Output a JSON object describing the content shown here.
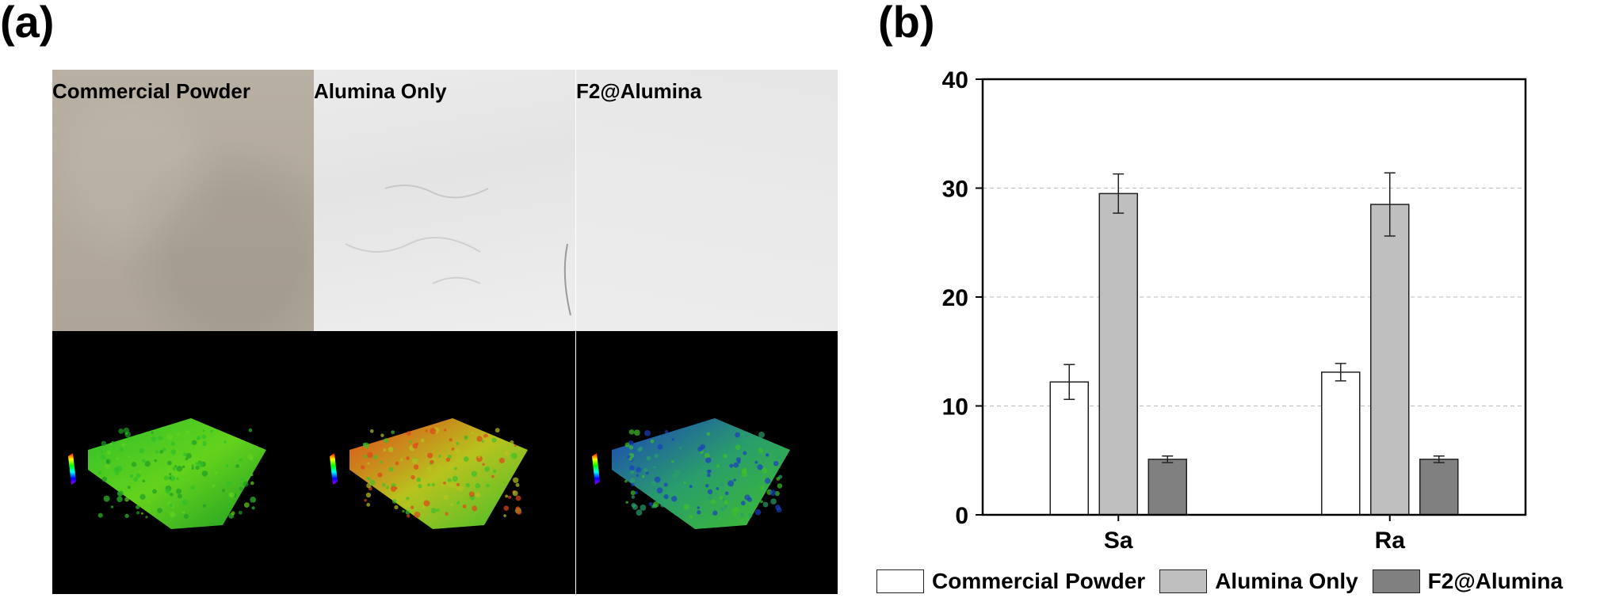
{
  "panel_a": {
    "letter": "(a)",
    "tiles": [
      {
        "label": "Commercial Powder",
        "surface_colors": [
          "#2fbf2a",
          "#64d21c",
          "#1e9e24"
        ]
      },
      {
        "label": "Alumina Only",
        "surface_colors": [
          "#e0441a",
          "#b8c21e",
          "#3fbf2a"
        ]
      },
      {
        "label": "F2@Alumina",
        "surface_colors": [
          "#1a3fbf",
          "#2a9e6a",
          "#3fbf2a"
        ]
      }
    ]
  },
  "panel_b": {
    "letter": "(b)"
  },
  "chart_data": {
    "type": "bar",
    "categories": [
      "Sa",
      "Ra"
    ],
    "series": [
      {
        "name": "Commercial Powder",
        "values": [
          12.2,
          13.1
        ],
        "errors": [
          1.6,
          0.8
        ],
        "color": "#ffffff"
      },
      {
        "name": "Alumina Only",
        "values": [
          29.5,
          28.5
        ],
        "errors": [
          1.8,
          2.9
        ],
        "color": "#bfbfbf"
      },
      {
        "name": "F2@Alumina",
        "values": [
          5.1,
          5.1
        ],
        "errors": [
          0.3,
          0.3
        ],
        "color": "#808080"
      }
    ],
    "ylim": [
      0,
      40
    ],
    "yticks": [
      0,
      10,
      20,
      30,
      40
    ],
    "grid": true,
    "legend_position": "bottom",
    "title": "",
    "xlabel": "",
    "ylabel": ""
  }
}
